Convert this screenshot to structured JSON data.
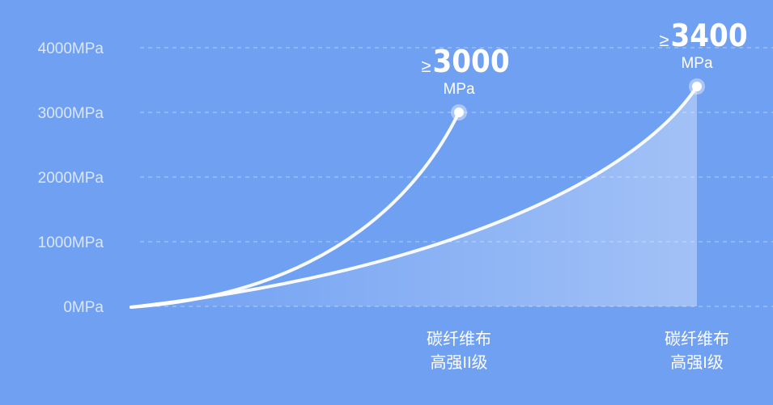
{
  "chart_data": {
    "type": "line",
    "ylim": [
      0,
      4000
    ],
    "yticks": [
      "0MPa",
      "1000MPa",
      "2000MPa",
      "3000MPa",
      "4000MPa"
    ],
    "ytick_values": [
      0,
      1000,
      2000,
      3000,
      4000
    ],
    "grid": "horizontal dashed",
    "series": [
      {
        "category_line1": "碳纤维布",
        "category_line2": "高强II级",
        "end_value": 3000,
        "label_prefix": "≥",
        "label_value": "3000",
        "label_unit": "MPa",
        "filled": false
      },
      {
        "category_line1": "碳纤维布",
        "category_line2": "高强I级",
        "end_value": 3400,
        "label_prefix": "≥",
        "label_value": "3400",
        "label_unit": "MPa",
        "filled": true
      }
    ]
  },
  "colors": {
    "background": "#70a0f2",
    "line": "#ffffff"
  }
}
